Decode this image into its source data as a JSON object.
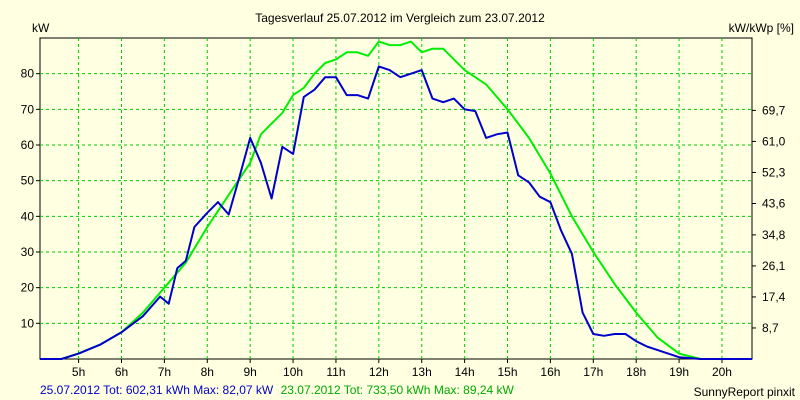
{
  "chart_data": {
    "type": "line",
    "title": "Tagesverlauf 25.07.2012 im Vergleich zum 23.07.2012",
    "ylabel_left": "kW",
    "ylabel_right": "kW/kWp [%]",
    "watermark": "SunnyReport pinxit",
    "xlim": [
      4.1,
      20.7
    ],
    "ylim": [
      0,
      90
    ],
    "grid": true,
    "x_ticks": [
      5,
      6,
      7,
      8,
      9,
      10,
      11,
      12,
      13,
      14,
      15,
      16,
      17,
      18,
      19,
      20
    ],
    "x_tick_labels": [
      "5h",
      "6h",
      "7h",
      "8h",
      "9h",
      "10h",
      "11h",
      "12h",
      "13h",
      "14h",
      "15h",
      "16h",
      "17h",
      "18h",
      "19h",
      "20h"
    ],
    "y_ticks_left": [
      10,
      20,
      30,
      40,
      50,
      60,
      70,
      80
    ],
    "y_ticks_right": [
      {
        "y": 8.7,
        "label": "8,7"
      },
      {
        "y": 17.4,
        "label": "17,4"
      },
      {
        "y": 26.1,
        "label": "26,1"
      },
      {
        "y": 34.8,
        "label": "34,8"
      },
      {
        "y": 43.6,
        "label": "43,6"
      },
      {
        "y": 52.3,
        "label": "52,3"
      },
      {
        "y": 61.0,
        "label": "61,0"
      },
      {
        "y": 69.7,
        "label": "69,7"
      }
    ],
    "series": [
      {
        "color": "#00ee00",
        "x": [
          4.1,
          4.6,
          5.0,
          5.5,
          6.0,
          6.5,
          7.0,
          7.5,
          8.0,
          8.5,
          9.0,
          9.25,
          9.5,
          9.75,
          10.0,
          10.25,
          10.5,
          10.75,
          11.0,
          11.25,
          11.5,
          11.75,
          12.0,
          12.25,
          12.5,
          12.75,
          13.0,
          13.25,
          13.5,
          14.0,
          14.5,
          15.0,
          15.5,
          16.0,
          16.5,
          17.0,
          17.5,
          18.0,
          18.5,
          19.0,
          19.5,
          20.0,
          20.7
        ],
        "values": [
          0,
          0,
          1.5,
          4,
          7.5,
          13,
          20,
          27,
          37,
          46,
          55,
          63,
          66,
          69,
          74,
          76,
          80,
          83,
          84,
          86,
          86,
          85,
          89,
          88,
          88,
          89,
          86,
          87,
          87,
          81,
          77,
          70,
          62,
          52,
          40,
          30,
          21,
          13,
          6,
          1.5,
          0,
          0,
          0
        ]
      },
      {
        "color": "#0000cc",
        "x": [
          4.1,
          4.6,
          5.0,
          5.5,
          6.0,
          6.5,
          6.9,
          7.1,
          7.3,
          7.5,
          7.7,
          8.0,
          8.25,
          8.5,
          8.75,
          9.0,
          9.25,
          9.5,
          9.75,
          10.0,
          10.25,
          10.5,
          10.75,
          11.0,
          11.25,
          11.5,
          11.75,
          12.0,
          12.25,
          12.5,
          12.75,
          13.0,
          13.25,
          13.5,
          13.75,
          14.0,
          14.25,
          14.5,
          14.75,
          15.0,
          15.25,
          15.5,
          15.75,
          16.0,
          16.25,
          16.5,
          16.75,
          17.0,
          17.25,
          17.5,
          17.75,
          18.0,
          18.25,
          18.5,
          19.0,
          19.5,
          20.0,
          20.7
        ],
        "values": [
          0,
          0,
          1.5,
          4,
          7.5,
          12,
          17.5,
          15.5,
          25.5,
          27.5,
          37,
          41,
          44,
          40.5,
          51,
          62,
          55,
          45,
          59.5,
          57.5,
          73.5,
          75.5,
          79,
          79,
          74,
          74,
          73,
          82,
          81,
          79,
          80,
          81,
          73,
          72,
          73,
          70,
          69.5,
          62,
          63,
          63.5,
          51.5,
          49.5,
          45.5,
          44,
          36,
          29.5,
          13,
          7,
          6.5,
          7,
          7,
          5,
          3.5,
          2.5,
          0.5,
          0,
          0,
          0
        ]
      }
    ]
  },
  "footer": {
    "series1_text": "25.07.2012 Tot: 602,31 kWh Max: 82,07 kW",
    "series2_text": "23.07.2012 Tot: 733,50 kWh Max: 89,24 kW"
  }
}
